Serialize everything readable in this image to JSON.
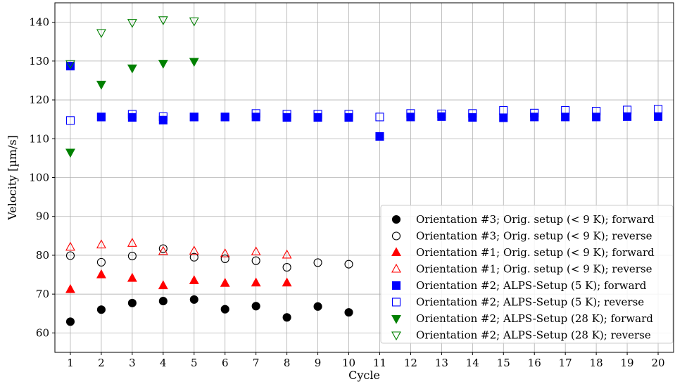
{
  "chart_data": {
    "type": "scatter",
    "xlabel": "Cycle",
    "ylabel": "Velocity [µm/s]",
    "xlim": [
      0.5,
      20.5
    ],
    "ylim": [
      55,
      145
    ],
    "xticks": [
      1,
      2,
      3,
      4,
      5,
      6,
      7,
      8,
      9,
      10,
      11,
      12,
      13,
      14,
      15,
      16,
      17,
      18,
      19,
      20
    ],
    "yticks": [
      60,
      70,
      80,
      90,
      100,
      110,
      120,
      130,
      140
    ],
    "grid": true,
    "legend_position": "lower right",
    "series": [
      {
        "name": "Orientation #3; Orig. setup (< 9 K); forward",
        "marker": "circle",
        "filled": true,
        "color": "#000000",
        "x": [
          1,
          2,
          3,
          4,
          5,
          6,
          7,
          8,
          9,
          10
        ],
        "y": [
          62.9,
          66.0,
          67.7,
          68.2,
          68.6,
          66.1,
          66.9,
          64.0,
          66.8,
          65.3
        ]
      },
      {
        "name": "Orientation #3; Orig. setup (< 9 K); reverse",
        "marker": "circle",
        "filled": false,
        "color": "#000000",
        "x": [
          1,
          2,
          3,
          4,
          5,
          6,
          7,
          8,
          9,
          10
        ],
        "y": [
          79.9,
          78.2,
          79.8,
          81.7,
          79.5,
          79.1,
          78.6,
          76.9,
          78.1,
          77.7
        ]
      },
      {
        "name": "Orientation #1; Orig. setup (< 9 K); forward",
        "marker": "triangle-up",
        "filled": true,
        "color": "#ff0000",
        "x": [
          1,
          2,
          3,
          4,
          5,
          6,
          7,
          8
        ],
        "y": [
          71.2,
          75.0,
          74.1,
          72.2,
          73.5,
          72.8,
          72.9,
          72.9
        ]
      },
      {
        "name": "Orientation #1; Orig. setup (< 9 K); reverse",
        "marker": "triangle-up",
        "filled": false,
        "color": "#ff0000",
        "x": [
          1,
          2,
          3,
          4,
          5,
          6,
          7,
          8
        ],
        "y": [
          82.1,
          82.7,
          83.1,
          81.0,
          81.1,
          80.4,
          80.9,
          80.1
        ]
      },
      {
        "name": "Orientation #2; ALPS-Setup (5 K); forward",
        "marker": "square",
        "filled": true,
        "color": "#0000ff",
        "x": [
          1,
          2,
          3,
          4,
          5,
          6,
          7,
          8,
          9,
          10,
          11,
          12,
          13,
          14,
          15,
          16,
          17,
          18,
          19,
          20
        ],
        "y": [
          128.7,
          115.6,
          115.5,
          114.8,
          115.6,
          115.6,
          115.6,
          115.5,
          115.5,
          115.5,
          110.6,
          115.6,
          115.7,
          115.5,
          115.4,
          115.6,
          115.6,
          115.6,
          115.7,
          115.7
        ]
      },
      {
        "name": "Orientation #2; ALPS-Setup (5 K); reverse",
        "marker": "square",
        "filled": false,
        "color": "#0000ff",
        "x": [
          1,
          2,
          3,
          4,
          5,
          6,
          7,
          8,
          9,
          10,
          11,
          12,
          13,
          14,
          15,
          16,
          17,
          18,
          19,
          20
        ],
        "y": [
          114.7,
          115.6,
          116.3,
          115.7,
          115.6,
          115.6,
          116.5,
          116.3,
          116.3,
          116.3,
          115.6,
          116.5,
          116.4,
          116.5,
          117.3,
          116.6,
          117.3,
          117.1,
          117.4,
          117.6
        ]
      },
      {
        "name": "Orientation #2; ALPS-Setup (28 K); forward",
        "marker": "triangle-down",
        "filled": true,
        "color": "#008000",
        "x": [
          1,
          2,
          3,
          4,
          5
        ],
        "y": [
          106.5,
          124.0,
          128.2,
          129.4,
          129.9
        ]
      },
      {
        "name": "Orientation #2; ALPS-Setup (28 K); reverse",
        "marker": "triangle-down",
        "filled": false,
        "color": "#008000",
        "x": [
          1,
          2,
          3,
          4,
          5
        ],
        "y": [
          129.3,
          137.3,
          139.9,
          140.6,
          140.3
        ]
      }
    ]
  }
}
